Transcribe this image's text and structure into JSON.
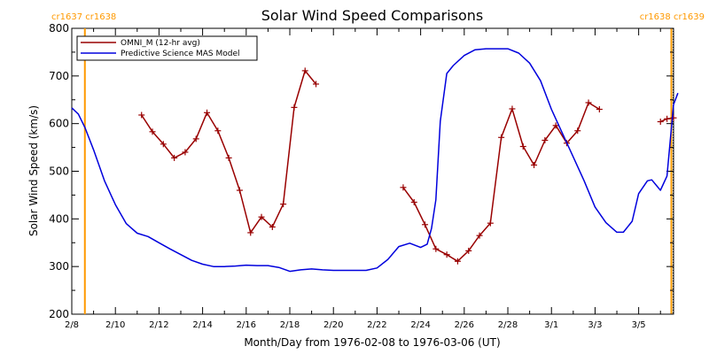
{
  "chart_data": {
    "type": "line",
    "title": "Solar Wind Speed Comparisons",
    "xlabel": "Month/Day from 1976-02-08 to 1976-03-06 (UT)",
    "ylabel": "Solar Wind Speed (km/s)",
    "x_unit": "days from 1976-02-08 00:00 UT",
    "xlim": [
      0,
      27.6
    ],
    "ylim": [
      200,
      800
    ],
    "x_ticks": [
      {
        "x": 0,
        "label": "2/8"
      },
      {
        "x": 2,
        "label": "2/10"
      },
      {
        "x": 4,
        "label": "2/12"
      },
      {
        "x": 6,
        "label": "2/14"
      },
      {
        "x": 8,
        "label": "2/16"
      },
      {
        "x": 10,
        "label": "2/18"
      },
      {
        "x": 12,
        "label": "2/20"
      },
      {
        "x": 14,
        "label": "2/22"
      },
      {
        "x": 16,
        "label": "2/24"
      },
      {
        "x": 18,
        "label": "2/26"
      },
      {
        "x": 20,
        "label": "2/28"
      },
      {
        "x": 22,
        "label": "3/1"
      },
      {
        "x": 24,
        "label": "3/3"
      },
      {
        "x": 26,
        "label": "3/5"
      }
    ],
    "y_ticks": [
      200,
      300,
      400,
      500,
      600,
      700,
      800
    ],
    "grid": false,
    "legend_position": "top-left",
    "carrington_markers": [
      {
        "x": 0.6,
        "top_label": "cr1637 cr1638",
        "color": "#ff9900",
        "style": "solid"
      },
      {
        "x": 27.5,
        "top_label": "cr1638 cr1639",
        "color": "#ff9900",
        "style": "solid-with-dotted"
      }
    ],
    "series": [
      {
        "name": "OMNI_M (12-hr avg)",
        "color": "#990000",
        "marker": "plus",
        "segments": [
          [
            [
              3.2,
              618
            ],
            [
              3.7,
              583
            ],
            [
              4.2,
              557
            ],
            [
              4.7,
              528
            ],
            [
              5.2,
              540
            ],
            [
              5.7,
              568
            ],
            [
              6.2,
              623
            ],
            [
              6.7,
              585
            ],
            [
              7.2,
              528
            ],
            [
              7.7,
              460
            ],
            [
              8.2,
              371
            ],
            [
              8.7,
              404
            ],
            [
              9.2,
              383
            ],
            [
              9.7,
              431
            ],
            [
              10.2,
              634
            ],
            [
              10.7,
              711
            ],
            [
              11.2,
              683
            ]
          ],
          [
            [
              15.2,
              466
            ],
            [
              15.7,
              435
            ],
            [
              16.2,
              388
            ],
            [
              16.7,
              337
            ],
            [
              17.2,
              325
            ],
            [
              17.7,
              311
            ],
            [
              18.2,
              333
            ],
            [
              18.7,
              365
            ],
            [
              19.2,
              391
            ],
            [
              19.7,
              571
            ],
            [
              20.2,
              631
            ],
            [
              20.7,
              552
            ],
            [
              21.2,
              513
            ],
            [
              21.7,
              565
            ],
            [
              22.2,
              596
            ],
            [
              22.7,
              559
            ],
            [
              23.2,
              585
            ],
            [
              23.7,
              644
            ],
            [
              24.2,
              630
            ]
          ],
          [
            [
              27.0,
              604
            ],
            [
              27.3,
              610
            ],
            [
              27.6,
              612
            ]
          ]
        ]
      },
      {
        "name": "Predictive Science MAS Model",
        "color": "#0000dd",
        "marker": "none",
        "points": [
          [
            0,
            633
          ],
          [
            0.3,
            620
          ],
          [
            0.6,
            592
          ],
          [
            1,
            545
          ],
          [
            1.5,
            480
          ],
          [
            2,
            430
          ],
          [
            2.5,
            390
          ],
          [
            3,
            370
          ],
          [
            3.5,
            363
          ],
          [
            4,
            350
          ],
          [
            4.5,
            337
          ],
          [
            5,
            325
          ],
          [
            5.5,
            313
          ],
          [
            6,
            305
          ],
          [
            6.5,
            300
          ],
          [
            7,
            300
          ],
          [
            7.5,
            301
          ],
          [
            8,
            303
          ],
          [
            8.5,
            302
          ],
          [
            9,
            302
          ],
          [
            9.5,
            298
          ],
          [
            10,
            290
          ],
          [
            10.5,
            293
          ],
          [
            11,
            295
          ],
          [
            11.5,
            293
          ],
          [
            12,
            292
          ],
          [
            12.5,
            292
          ],
          [
            13,
            292
          ],
          [
            13.5,
            292
          ],
          [
            14,
            297
          ],
          [
            14.5,
            315
          ],
          [
            15,
            342
          ],
          [
            15.5,
            349
          ],
          [
            16,
            340
          ],
          [
            16.3,
            347
          ],
          [
            16.5,
            380
          ],
          [
            16.7,
            440
          ],
          [
            16.9,
            605
          ],
          [
            17.2,
            705
          ],
          [
            17.5,
            722
          ],
          [
            18,
            743
          ],
          [
            18.5,
            755
          ],
          [
            19,
            757
          ],
          [
            19.5,
            757
          ],
          [
            20,
            757
          ],
          [
            20.5,
            748
          ],
          [
            21,
            727
          ],
          [
            21.5,
            690
          ],
          [
            22,
            630
          ],
          [
            22.5,
            580
          ],
          [
            23,
            530
          ],
          [
            23.5,
            480
          ],
          [
            24,
            425
          ],
          [
            24.5,
            392
          ],
          [
            25,
            372
          ],
          [
            25.3,
            372
          ],
          [
            25.7,
            395
          ],
          [
            26,
            453
          ],
          [
            26.4,
            480
          ],
          [
            26.6,
            482
          ],
          [
            27,
            460
          ],
          [
            27.3,
            490
          ],
          [
            27.6,
            640
          ],
          [
            27.8,
            664
          ]
        ]
      }
    ]
  }
}
